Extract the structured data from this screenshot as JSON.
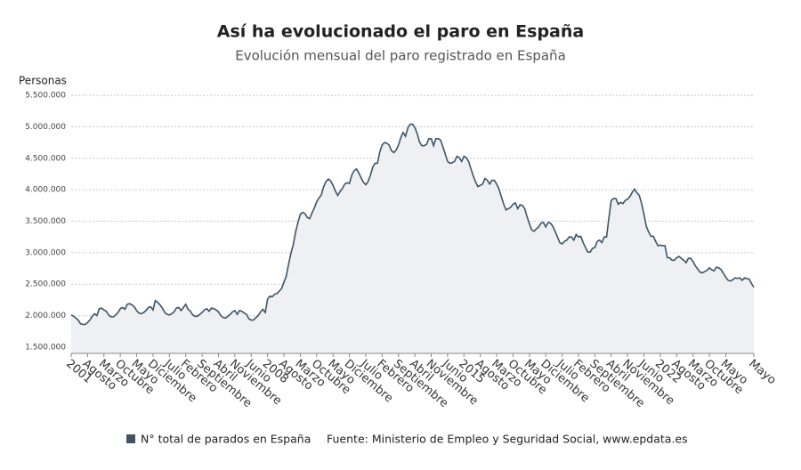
{
  "chart_data": {
    "type": "area",
    "title": "Así ha evolucionado el paro en España",
    "subtitle": "Evolución mensual del paro registrado en España",
    "y_axis_label": "Personas",
    "source": "Fuente: Ministerio de Empleo y Seguridad Social, www.epdata.es",
    "grid": true,
    "ylim": [
      1400000,
      5600000
    ],
    "yticks": [
      {
        "value": 1500000,
        "label": "1.500.000"
      },
      {
        "value": 2000000,
        "label": "2.000.000"
      },
      {
        "value": 2500000,
        "label": "2.500.000"
      },
      {
        "value": 3000000,
        "label": "3.000.000"
      },
      {
        "value": 3500000,
        "label": "3.500.000"
      },
      {
        "value": 4000000,
        "label": "4.000.000"
      },
      {
        "value": 4500000,
        "label": "4.500.000"
      },
      {
        "value": 5000000,
        "label": "5.000.000"
      },
      {
        "value": 5500000,
        "label": "5.500.000"
      }
    ],
    "categories": [
      "2001",
      null,
      null,
      null,
      null,
      null,
      null,
      "Agosto",
      null,
      null,
      null,
      null,
      null,
      null,
      "Marzo",
      null,
      null,
      null,
      null,
      null,
      null,
      "Octubre",
      null,
      null,
      null,
      null,
      null,
      null,
      "Mayo",
      null,
      null,
      null,
      null,
      null,
      null,
      "Diciembre",
      null,
      null,
      null,
      null,
      null,
      null,
      "Julio",
      null,
      null,
      null,
      null,
      null,
      null,
      "Febrero",
      null,
      null,
      null,
      null,
      null,
      null,
      "Septiembre",
      null,
      null,
      null,
      null,
      null,
      null,
      "Abril",
      null,
      null,
      null,
      null,
      null,
      null,
      "Noviembre",
      null,
      null,
      null,
      null,
      null,
      null,
      "Junio",
      null,
      null,
      null,
      null,
      null,
      null,
      "2008",
      null,
      null,
      null,
      null,
      null,
      null,
      "Agosto",
      null,
      null,
      null,
      null,
      null,
      null,
      "Marzo",
      null,
      null,
      null,
      null,
      null,
      null,
      "Octubre",
      null,
      null,
      null,
      null,
      null,
      null,
      "Mayo",
      null,
      null,
      null,
      null,
      null,
      null,
      "Diciembre",
      null,
      null,
      null,
      null,
      null,
      null,
      "Julio",
      null,
      null,
      null,
      null,
      null,
      null,
      "Febrero",
      null,
      null,
      null,
      null,
      null,
      null,
      "Septiembre",
      null,
      null,
      null,
      null,
      null,
      null,
      "Abril",
      null,
      null,
      null,
      null,
      null,
      null,
      "Noviembre",
      null,
      null,
      null,
      null,
      null,
      null,
      "Junio",
      null,
      null,
      null,
      null,
      null,
      null,
      "2015",
      null,
      null,
      null,
      null,
      null,
      null,
      "Agosto",
      null,
      null,
      null,
      null,
      null,
      null,
      "Marzo",
      null,
      null,
      null,
      null,
      null,
      null,
      "Octubre",
      null,
      null,
      null,
      null,
      null,
      null,
      "Mayo",
      null,
      null,
      null,
      null,
      null,
      null,
      "Diciembre",
      null,
      null,
      null,
      null,
      null,
      null,
      "Julio",
      null,
      null,
      null,
      null,
      null,
      null,
      "Febrero",
      null,
      null,
      null,
      null,
      null,
      null,
      "Septiembre",
      null,
      null,
      null,
      null,
      null,
      null,
      "Abril",
      null,
      null,
      null,
      null,
      null,
      null,
      "Noviembre",
      null,
      null,
      null,
      null,
      null,
      null,
      "Junio",
      null,
      null,
      null,
      null,
      null,
      null,
      "2022",
      null,
      null,
      null,
      null,
      null,
      null,
      "Agosto",
      null,
      null,
      null,
      null,
      null,
      null,
      "Marzo",
      null,
      null,
      null,
      null,
      null,
      null,
      "Octubre",
      null,
      null,
      null,
      null,
      null,
      null,
      "Mayo",
      null,
      null,
      null,
      null,
      null,
      null,
      null,
      null,
      null,
      null,
      null,
      "Mayo"
    ],
    "series": [
      {
        "name": "N° total de parados en España",
        "color": "#3e5564",
        "values": [
          2010000,
          1990000,
          1960000,
          1930000,
          1870000,
          1860000,
          1860000,
          1890000,
          1930000,
          1990000,
          2030000,
          2000000,
          2110000,
          2120000,
          2090000,
          2070000,
          2010000,
          1980000,
          1980000,
          2010000,
          2050000,
          2110000,
          2130000,
          2100000,
          2180000,
          2190000,
          2170000,
          2140000,
          2080000,
          2040000,
          2030000,
          2050000,
          2080000,
          2130000,
          2140000,
          2090000,
          2240000,
          2210000,
          2170000,
          2120000,
          2050000,
          2020000,
          2010000,
          2030000,
          2060000,
          2120000,
          2130000,
          2080000,
          2130000,
          2180000,
          2100000,
          2070000,
          2010000,
          1990000,
          1990000,
          2020000,
          2050000,
          2090000,
          2110000,
          2070000,
          2120000,
          2110000,
          2090000,
          2060000,
          2000000,
          1970000,
          1960000,
          1990000,
          2020000,
          2060000,
          2080000,
          2020000,
          2080000,
          2070000,
          2040000,
          2020000,
          1950000,
          1930000,
          1930000,
          1970000,
          2000000,
          2060000,
          2100000,
          2050000,
          2260000,
          2310000,
          2300000,
          2340000,
          2350000,
          2390000,
          2430000,
          2530000,
          2630000,
          2820000,
          2990000,
          3130000,
          3330000,
          3480000,
          3610000,
          3640000,
          3620000,
          3560000,
          3540000,
          3630000,
          3710000,
          3810000,
          3870000,
          3920000,
          4050000,
          4130000,
          4170000,
          4140000,
          4070000,
          3980000,
          3910000,
          3970000,
          4020000,
          4090000,
          4110000,
          4100000,
          4230000,
          4300000,
          4330000,
          4270000,
          4190000,
          4120000,
          4080000,
          4130000,
          4230000,
          4360000,
          4420000,
          4420000,
          4600000,
          4710000,
          4750000,
          4740000,
          4710000,
          4620000,
          4590000,
          4630000,
          4710000,
          4830000,
          4910000,
          4850000,
          4980000,
          5040000,
          5040000,
          4990000,
          4890000,
          4760000,
          4700000,
          4700000,
          4720000,
          4810000,
          4810000,
          4700000,
          4810000,
          4810000,
          4790000,
          4680000,
          4570000,
          4450000,
          4420000,
          4430000,
          4450000,
          4530000,
          4510000,
          4450000,
          4530000,
          4510000,
          4450000,
          4330000,
          4220000,
          4120000,
          4050000,
          4070000,
          4090000,
          4180000,
          4150000,
          4090000,
          4150000,
          4150000,
          4090000,
          4010000,
          3890000,
          3770000,
          3680000,
          3700000,
          3720000,
          3770000,
          3790000,
          3700000,
          3760000,
          3750000,
          3700000,
          3570000,
          3460000,
          3360000,
          3340000,
          3380000,
          3410000,
          3470000,
          3480000,
          3410000,
          3480000,
          3470000,
          3420000,
          3340000,
          3250000,
          3160000,
          3140000,
          3180000,
          3200000,
          3250000,
          3250000,
          3200000,
          3290000,
          3250000,
          3260000,
          3160000,
          3080000,
          3010000,
          3010000,
          3070000,
          3080000,
          3180000,
          3200000,
          3160000,
          3250000,
          3250000,
          3550000,
          3830000,
          3860000,
          3860000,
          3770000,
          3800000,
          3780000,
          3830000,
          3850000,
          3890000,
          3960000,
          4010000,
          3950000,
          3910000,
          3780000,
          3610000,
          3420000,
          3330000,
          3260000,
          3260000,
          3180000,
          3110000,
          3120000,
          3110000,
          3110000,
          2920000,
          2920000,
          2880000,
          2880000,
          2920000,
          2940000,
          2910000,
          2880000,
          2840000,
          2910000,
          2910000,
          2860000,
          2790000,
          2740000,
          2690000,
          2680000,
          2700000,
          2720000,
          2760000,
          2730000,
          2710000,
          2770000,
          2760000,
          2730000,
          2670000,
          2610000,
          2560000,
          2550000,
          2570000,
          2600000,
          2590000,
          2600000,
          2560000,
          2600000,
          2590000,
          2580000,
          2510000,
          2450000
        ]
      }
    ]
  }
}
